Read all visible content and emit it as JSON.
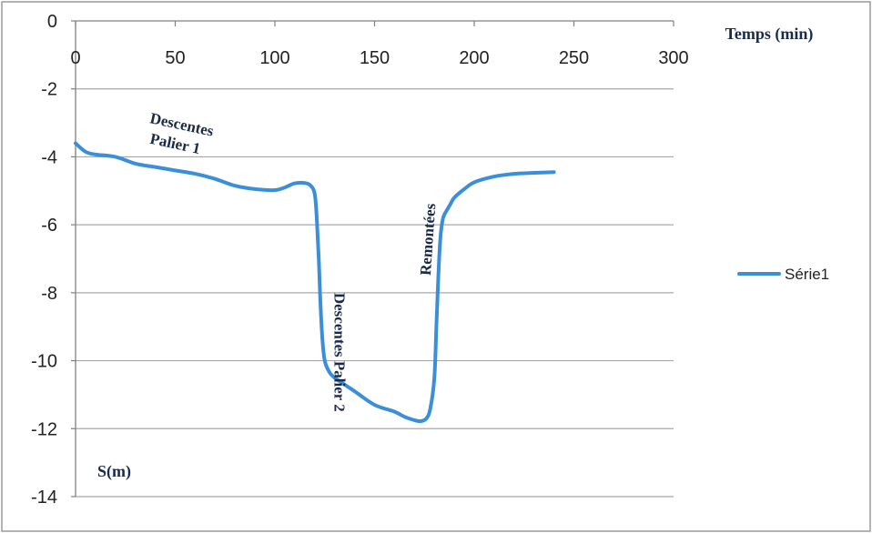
{
  "chart_data": {
    "type": "line",
    "title": "",
    "xlabel": "Temps (min)",
    "ylabel": "S(m)",
    "xlim": [
      0,
      300
    ],
    "ylim": [
      -14,
      0
    ],
    "x_ticks": [
      0,
      50,
      100,
      150,
      200,
      250,
      300
    ],
    "y_ticks": [
      0,
      -2,
      -4,
      -6,
      -8,
      -10,
      -12,
      -14
    ],
    "grid": "horizontal",
    "legend_position": "right",
    "series": [
      {
        "name": "Série1",
        "color": "#3b8fd9",
        "x": [
          0,
          5,
          10,
          20,
          30,
          40,
          50,
          60,
          70,
          80,
          90,
          100,
          105,
          110,
          115,
          118,
          120,
          121,
          122,
          123,
          124,
          125,
          127,
          130,
          140,
          150,
          160,
          165,
          170,
          173,
          176,
          178,
          180,
          181,
          182,
          183,
          184,
          185,
          186,
          188,
          190,
          195,
          200,
          210,
          220,
          230,
          240
        ],
        "y": [
          -3.6,
          -3.85,
          -3.93,
          -4.0,
          -4.2,
          -4.3,
          -4.4,
          -4.5,
          -4.65,
          -4.85,
          -4.95,
          -4.98,
          -4.9,
          -4.78,
          -4.77,
          -4.85,
          -5.1,
          -5.8,
          -7.0,
          -8.5,
          -9.5,
          -10.0,
          -10.3,
          -10.5,
          -10.9,
          -11.3,
          -11.5,
          -11.65,
          -11.75,
          -11.78,
          -11.7,
          -11.4,
          -10.5,
          -9.0,
          -7.5,
          -6.4,
          -5.9,
          -5.7,
          -5.6,
          -5.4,
          -5.2,
          -4.95,
          -4.75,
          -4.58,
          -4.5,
          -4.47,
          -4.45
        ]
      }
    ],
    "annotations": [
      {
        "text": "Descentes",
        "x": 37,
        "y": -3.0
      },
      {
        "text": "Palier 1",
        "x": 37,
        "y": -3.6
      },
      {
        "text": "Descentes Palier 2",
        "x": 130,
        "y": -8.0
      },
      {
        "text": "Remontées",
        "x": 178,
        "y": -7.5
      }
    ]
  }
}
